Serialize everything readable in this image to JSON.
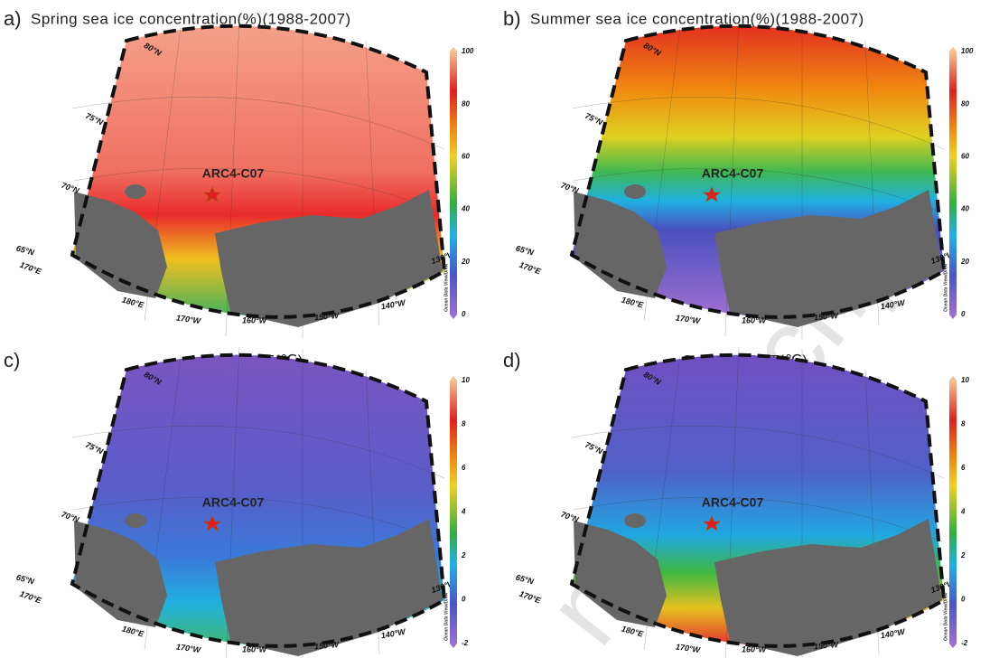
{
  "watermark": "manuscript",
  "graticule": {
    "lat": [
      "80°N",
      "75°N",
      "70°N",
      "65°N"
    ],
    "lon": [
      "170°E",
      "180°E",
      "170°W",
      "160°W",
      "150°W",
      "140°W",
      "130°W"
    ]
  },
  "credit": "Ocean Data View/DIVA",
  "panels": [
    {
      "label": "a)",
      "title": "Spring sea ice concentration(%)(1988-2007)",
      "station": "ARC4-C07",
      "colorbar_ticks": [
        "0",
        "20",
        "40",
        "60",
        "80",
        "100"
      ]
    },
    {
      "label": "b)",
      "title": "Summer sea ice concentration(%)(1988-2007)",
      "station": "ARC4-C07",
      "colorbar_ticks": [
        "0",
        "20",
        "40",
        "60",
        "80",
        "100"
      ]
    },
    {
      "label": "c)",
      "title": "Annual SST(℃)",
      "station": "ARC4-C07",
      "colorbar_ticks": [
        "-2",
        "0",
        "2",
        "4",
        "6",
        "8",
        "10"
      ]
    },
    {
      "label": "d)",
      "title": "Summer SST(℃)",
      "station": "ARC4-C07",
      "colorbar_ticks": [
        "-2",
        "0",
        "2",
        "4",
        "6",
        "8",
        "10"
      ]
    }
  ]
}
